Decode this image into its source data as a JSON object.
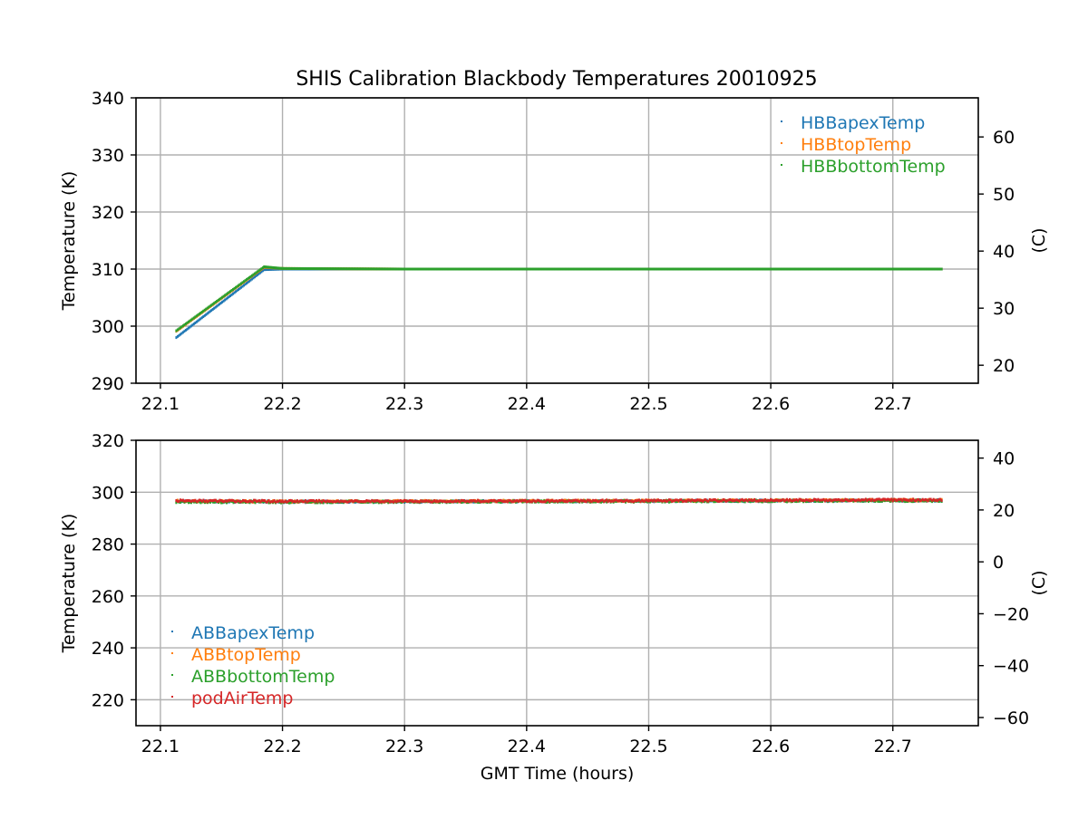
{
  "title": "SHIS Calibration Blackbody Temperatures 20010925",
  "chart_data": [
    {
      "type": "scatter",
      "xlabel": "",
      "ylabel": "Temperature (K)",
      "y2label": "(C)",
      "xlim": [
        22.08,
        22.77
      ],
      "ylim": [
        290,
        340
      ],
      "y2lim": [
        16.85,
        66.85
      ],
      "xticks": [
        "22.1",
        "22.2",
        "22.3",
        "22.4",
        "22.5",
        "22.6",
        "22.7"
      ],
      "yticks": [
        "290",
        "300",
        "310",
        "320",
        "330",
        "340"
      ],
      "y2ticks": [
        "20",
        "30",
        "40",
        "50",
        "60"
      ],
      "grid": true,
      "legend_position": "top-right",
      "series": [
        {
          "name": "HBBapexTemp",
          "color": "#1f77b4",
          "x": [
            22.113,
            22.185,
            22.2,
            22.3,
            22.4,
            22.5,
            22.6,
            22.7,
            22.74
          ],
          "y": [
            298.0,
            309.9,
            310.0,
            310.0,
            310.0,
            310.0,
            310.0,
            310.0,
            310.0
          ]
        },
        {
          "name": "HBBtopTemp",
          "color": "#ff7f0e",
          "x": [
            22.113,
            22.185,
            22.2,
            22.3,
            22.4,
            22.5,
            22.6,
            22.7,
            22.74
          ],
          "y": [
            299.1,
            310.3,
            310.1,
            310.0,
            310.0,
            310.0,
            310.0,
            310.0,
            310.0
          ]
        },
        {
          "name": "HBBbottomTemp",
          "color": "#2ca02c",
          "x": [
            22.113,
            22.185,
            22.2,
            22.3,
            22.4,
            22.5,
            22.6,
            22.7,
            22.74
          ],
          "y": [
            299.2,
            310.4,
            310.1,
            310.0,
            310.0,
            310.0,
            310.0,
            310.0,
            310.0
          ]
        }
      ]
    },
    {
      "type": "scatter",
      "xlabel": "GMT Time (hours)",
      "ylabel": "Temperature (K)",
      "y2label": "(C)",
      "xlim": [
        22.08,
        22.77
      ],
      "ylim": [
        210,
        320
      ],
      "y2lim": [
        -63.15,
        46.85
      ],
      "xticks": [
        "22.1",
        "22.2",
        "22.3",
        "22.4",
        "22.5",
        "22.6",
        "22.7"
      ],
      "yticks": [
        "220",
        "240",
        "260",
        "280",
        "300",
        "320"
      ],
      "y2ticks": [
        "−60",
        "−40",
        "−20",
        "0",
        "20",
        "40"
      ],
      "grid": true,
      "legend_position": "bottom-left",
      "series": [
        {
          "name": "ABBapexTemp",
          "color": "#1f77b4",
          "x": [
            22.113,
            22.2,
            22.3,
            22.4,
            22.5,
            22.6,
            22.7,
            22.74
          ],
          "y": [
            296.5,
            296.3,
            296.4,
            296.5,
            296.6,
            296.7,
            296.8,
            296.8
          ]
        },
        {
          "name": "ABBtopTemp",
          "color": "#ff7f0e",
          "x": [
            22.113,
            22.2,
            22.3,
            22.4,
            22.5,
            22.6,
            22.7,
            22.74
          ],
          "y": [
            296.6,
            296.4,
            296.5,
            296.6,
            296.7,
            296.8,
            296.9,
            296.9
          ]
        },
        {
          "name": "ABBbottomTemp",
          "color": "#2ca02c",
          "x": [
            22.113,
            22.2,
            22.3,
            22.4,
            22.5,
            22.6,
            22.7,
            22.74
          ],
          "y": [
            296.3,
            296.2,
            296.3,
            296.4,
            296.5,
            296.6,
            296.7,
            296.7
          ]
        },
        {
          "name": "podAirTemp",
          "color": "#d62728",
          "x": [
            22.113,
            22.2,
            22.3,
            22.4,
            22.5,
            22.6,
            22.7,
            22.74
          ],
          "y": [
            296.7,
            296.5,
            296.5,
            296.6,
            296.7,
            296.9,
            297.0,
            297.0
          ]
        }
      ]
    }
  ]
}
